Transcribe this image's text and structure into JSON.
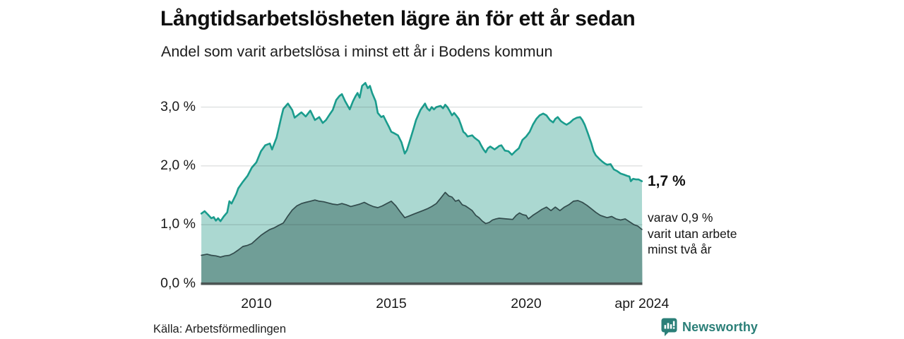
{
  "header": {
    "title": "Långtidsarbetslösheten lägre än för ett år sedan",
    "subtitle": "Andel som varit arbetslösa i minst ett år i Bodens kommun"
  },
  "annotations": {
    "end_value_label": "1,7 %",
    "note_lines": [
      "varav 0,9 %",
      "varit utan arbete",
      "minst två år"
    ]
  },
  "footer": {
    "source": "Källa: Arbetsförmedlingen",
    "brand": "Newsworthy"
  },
  "colors": {
    "accent_teal_line": "#1a9c8d",
    "light_area_fill": "#abd8d1",
    "dark_area_fill": "#709e97",
    "dark_area_line": "#324b4c",
    "gridline": "#d9d9d9",
    "axis_baseline": "#4b5453",
    "brand_teal": "#2b7f78"
  },
  "chart_data": {
    "type": "area",
    "title": "Långtidsarbetslösheten lägre än för ett år sedan",
    "subtitle": "Andel som varit arbetslösa i minst ett år i Bodens kommun",
    "grid": "horizontal",
    "legend": "none",
    "x_axis": {
      "domain": [
        2007.96,
        2024.29
      ],
      "ticks": [
        {
          "label": "2010",
          "t": 2010
        },
        {
          "label": "2015",
          "t": 2015
        },
        {
          "label": "2020",
          "t": 2020
        },
        {
          "label": "apr 2024",
          "t": 2024.29
        }
      ]
    },
    "y_axis": {
      "unit": "%",
      "domain": [
        0,
        3.55
      ],
      "ticks": [
        {
          "label": "0,0 %",
          "value": 0
        },
        {
          "label": "1,0 %",
          "value": 1
        },
        {
          "label": "2,0 %",
          "value": 2
        },
        {
          "label": "3,0 %",
          "value": 3
        }
      ]
    },
    "series": [
      {
        "id": "unemployed_at_least_one_year",
        "end_value": 1.7,
        "color": "#1a9c8d",
        "fill": "#abd8d1",
        "points": [
          [
            2007.96,
            1.19
          ],
          [
            2008.08,
            1.23
          ],
          [
            2008.21,
            1.17
          ],
          [
            2008.33,
            1.11
          ],
          [
            2008.42,
            1.13
          ],
          [
            2008.5,
            1.07
          ],
          [
            2008.58,
            1.11
          ],
          [
            2008.67,
            1.06
          ],
          [
            2008.79,
            1.14
          ],
          [
            2008.92,
            1.21
          ],
          [
            2009.0,
            1.4
          ],
          [
            2009.08,
            1.36
          ],
          [
            2009.25,
            1.52
          ],
          [
            2009.33,
            1.62
          ],
          [
            2009.5,
            1.73
          ],
          [
            2009.67,
            1.83
          ],
          [
            2009.83,
            1.97
          ],
          [
            2010.0,
            2.06
          ],
          [
            2010.17,
            2.25
          ],
          [
            2010.33,
            2.35
          ],
          [
            2010.5,
            2.38
          ],
          [
            2010.58,
            2.28
          ],
          [
            2010.75,
            2.48
          ],
          [
            2010.92,
            2.82
          ],
          [
            2011.0,
            2.97
          ],
          [
            2011.17,
            3.06
          ],
          [
            2011.33,
            2.95
          ],
          [
            2011.42,
            2.82
          ],
          [
            2011.58,
            2.88
          ],
          [
            2011.67,
            2.91
          ],
          [
            2011.83,
            2.84
          ],
          [
            2012.0,
            2.94
          ],
          [
            2012.17,
            2.78
          ],
          [
            2012.33,
            2.83
          ],
          [
            2012.46,
            2.73
          ],
          [
            2012.58,
            2.78
          ],
          [
            2012.71,
            2.87
          ],
          [
            2012.83,
            2.95
          ],
          [
            2012.96,
            3.12
          ],
          [
            2013.08,
            3.19
          ],
          [
            2013.17,
            3.22
          ],
          [
            2013.29,
            3.1
          ],
          [
            2013.46,
            2.96
          ],
          [
            2013.58,
            3.1
          ],
          [
            2013.67,
            3.18
          ],
          [
            2013.75,
            3.24
          ],
          [
            2013.83,
            3.16
          ],
          [
            2013.92,
            3.36
          ],
          [
            2014.04,
            3.41
          ],
          [
            2014.13,
            3.32
          ],
          [
            2014.21,
            3.36
          ],
          [
            2014.29,
            3.24
          ],
          [
            2014.42,
            3.1
          ],
          [
            2014.5,
            2.9
          ],
          [
            2014.63,
            2.83
          ],
          [
            2014.71,
            2.85
          ],
          [
            2014.83,
            2.74
          ],
          [
            2014.92,
            2.66
          ],
          [
            2015.0,
            2.58
          ],
          [
            2015.13,
            2.55
          ],
          [
            2015.25,
            2.52
          ],
          [
            2015.38,
            2.4
          ],
          [
            2015.5,
            2.21
          ],
          [
            2015.58,
            2.27
          ],
          [
            2015.67,
            2.4
          ],
          [
            2015.83,
            2.64
          ],
          [
            2015.92,
            2.78
          ],
          [
            2016.08,
            2.95
          ],
          [
            2016.25,
            3.06
          ],
          [
            2016.33,
            2.98
          ],
          [
            2016.42,
            2.94
          ],
          [
            2016.5,
            3.0
          ],
          [
            2016.58,
            2.96
          ],
          [
            2016.67,
            3.0
          ],
          [
            2016.83,
            3.02
          ],
          [
            2016.92,
            2.98
          ],
          [
            2017.0,
            3.04
          ],
          [
            2017.08,
            3.0
          ],
          [
            2017.17,
            2.93
          ],
          [
            2017.25,
            2.86
          ],
          [
            2017.33,
            2.9
          ],
          [
            2017.42,
            2.85
          ],
          [
            2017.5,
            2.8
          ],
          [
            2017.58,
            2.7
          ],
          [
            2017.67,
            2.58
          ],
          [
            2017.75,
            2.55
          ],
          [
            2017.83,
            2.5
          ],
          [
            2018.0,
            2.52
          ],
          [
            2018.08,
            2.48
          ],
          [
            2018.25,
            2.42
          ],
          [
            2018.33,
            2.35
          ],
          [
            2018.42,
            2.28
          ],
          [
            2018.5,
            2.23
          ],
          [
            2018.58,
            2.3
          ],
          [
            2018.67,
            2.33
          ],
          [
            2018.83,
            2.28
          ],
          [
            2018.92,
            2.31
          ],
          [
            2019.0,
            2.34
          ],
          [
            2019.08,
            2.35
          ],
          [
            2019.21,
            2.26
          ],
          [
            2019.34,
            2.25
          ],
          [
            2019.47,
            2.19
          ],
          [
            2019.6,
            2.25
          ],
          [
            2019.73,
            2.3
          ],
          [
            2019.86,
            2.44
          ],
          [
            2020.0,
            2.5
          ],
          [
            2020.13,
            2.58
          ],
          [
            2020.25,
            2.7
          ],
          [
            2020.38,
            2.8
          ],
          [
            2020.5,
            2.86
          ],
          [
            2020.63,
            2.89
          ],
          [
            2020.75,
            2.86
          ],
          [
            2020.88,
            2.78
          ],
          [
            2021.0,
            2.74
          ],
          [
            2021.08,
            2.8
          ],
          [
            2021.17,
            2.83
          ],
          [
            2021.29,
            2.76
          ],
          [
            2021.42,
            2.72
          ],
          [
            2021.5,
            2.7
          ],
          [
            2021.63,
            2.74
          ],
          [
            2021.75,
            2.79
          ],
          [
            2021.88,
            2.82
          ],
          [
            2022.0,
            2.83
          ],
          [
            2022.08,
            2.78
          ],
          [
            2022.17,
            2.7
          ],
          [
            2022.29,
            2.55
          ],
          [
            2022.42,
            2.38
          ],
          [
            2022.5,
            2.25
          ],
          [
            2022.58,
            2.18
          ],
          [
            2022.71,
            2.12
          ],
          [
            2022.83,
            2.07
          ],
          [
            2022.92,
            2.04
          ],
          [
            2023.0,
            2.02
          ],
          [
            2023.13,
            2.03
          ],
          [
            2023.25,
            1.94
          ],
          [
            2023.38,
            1.91
          ],
          [
            2023.5,
            1.87
          ],
          [
            2023.63,
            1.85
          ],
          [
            2023.75,
            1.83
          ],
          [
            2023.83,
            1.82
          ],
          [
            2023.88,
            1.74
          ],
          [
            2023.96,
            1.78
          ],
          [
            2024.08,
            1.77
          ],
          [
            2024.17,
            1.77
          ],
          [
            2024.29,
            1.74
          ]
        ]
      },
      {
        "id": "unemployed_at_least_two_years",
        "end_value": 0.9,
        "color": "#324b4c",
        "fill": "#709e97",
        "points": [
          [
            2007.96,
            0.48
          ],
          [
            2008.17,
            0.5
          ],
          [
            2008.33,
            0.48
          ],
          [
            2008.5,
            0.47
          ],
          [
            2008.67,
            0.45
          ],
          [
            2008.83,
            0.47
          ],
          [
            2009.0,
            0.48
          ],
          [
            2009.17,
            0.52
          ],
          [
            2009.33,
            0.57
          ],
          [
            2009.5,
            0.63
          ],
          [
            2009.67,
            0.65
          ],
          [
            2009.83,
            0.68
          ],
          [
            2010.0,
            0.75
          ],
          [
            2010.17,
            0.82
          ],
          [
            2010.33,
            0.87
          ],
          [
            2010.5,
            0.92
          ],
          [
            2010.67,
            0.95
          ],
          [
            2010.83,
            0.99
          ],
          [
            2011.0,
            1.03
          ],
          [
            2011.17,
            1.15
          ],
          [
            2011.33,
            1.25
          ],
          [
            2011.5,
            1.32
          ],
          [
            2011.67,
            1.36
          ],
          [
            2011.83,
            1.38
          ],
          [
            2012.0,
            1.4
          ],
          [
            2012.17,
            1.42
          ],
          [
            2012.33,
            1.4
          ],
          [
            2012.5,
            1.39
          ],
          [
            2012.67,
            1.37
          ],
          [
            2012.83,
            1.35
          ],
          [
            2013.0,
            1.34
          ],
          [
            2013.17,
            1.36
          ],
          [
            2013.33,
            1.34
          ],
          [
            2013.5,
            1.31
          ],
          [
            2013.67,
            1.33
          ],
          [
            2013.83,
            1.35
          ],
          [
            2014.0,
            1.38
          ],
          [
            2014.17,
            1.34
          ],
          [
            2014.33,
            1.31
          ],
          [
            2014.5,
            1.29
          ],
          [
            2014.67,
            1.32
          ],
          [
            2014.83,
            1.36
          ],
          [
            2015.0,
            1.4
          ],
          [
            2015.17,
            1.32
          ],
          [
            2015.33,
            1.22
          ],
          [
            2015.5,
            1.12
          ],
          [
            2015.67,
            1.15
          ],
          [
            2015.83,
            1.18
          ],
          [
            2016.0,
            1.21
          ],
          [
            2016.17,
            1.24
          ],
          [
            2016.33,
            1.27
          ],
          [
            2016.5,
            1.31
          ],
          [
            2016.67,
            1.36
          ],
          [
            2016.83,
            1.45
          ],
          [
            2017.0,
            1.55
          ],
          [
            2017.13,
            1.49
          ],
          [
            2017.25,
            1.47
          ],
          [
            2017.38,
            1.4
          ],
          [
            2017.5,
            1.42
          ],
          [
            2017.63,
            1.34
          ],
          [
            2017.75,
            1.32
          ],
          [
            2017.88,
            1.28
          ],
          [
            2018.0,
            1.24
          ],
          [
            2018.13,
            1.16
          ],
          [
            2018.25,
            1.12
          ],
          [
            2018.38,
            1.06
          ],
          [
            2018.5,
            1.02
          ],
          [
            2018.63,
            1.04
          ],
          [
            2018.75,
            1.08
          ],
          [
            2018.88,
            1.1
          ],
          [
            2019.0,
            1.11
          ],
          [
            2019.25,
            1.1
          ],
          [
            2019.5,
            1.09
          ],
          [
            2019.63,
            1.16
          ],
          [
            2019.75,
            1.2
          ],
          [
            2019.88,
            1.17
          ],
          [
            2020.0,
            1.16
          ],
          [
            2020.08,
            1.1
          ],
          [
            2020.25,
            1.16
          ],
          [
            2020.42,
            1.21
          ],
          [
            2020.58,
            1.26
          ],
          [
            2020.75,
            1.3
          ],
          [
            2020.92,
            1.24
          ],
          [
            2021.08,
            1.3
          ],
          [
            2021.25,
            1.24
          ],
          [
            2021.42,
            1.3
          ],
          [
            2021.58,
            1.34
          ],
          [
            2021.75,
            1.4
          ],
          [
            2021.92,
            1.41
          ],
          [
            2022.08,
            1.38
          ],
          [
            2022.25,
            1.33
          ],
          [
            2022.42,
            1.27
          ],
          [
            2022.58,
            1.21
          ],
          [
            2022.75,
            1.16
          ],
          [
            2023.0,
            1.12
          ],
          [
            2023.17,
            1.14
          ],
          [
            2023.33,
            1.1
          ],
          [
            2023.5,
            1.08
          ],
          [
            2023.67,
            1.1
          ],
          [
            2023.83,
            1.05
          ],
          [
            2024.0,
            1.0
          ],
          [
            2024.13,
            0.98
          ],
          [
            2024.29,
            0.92
          ]
        ]
      }
    ]
  }
}
